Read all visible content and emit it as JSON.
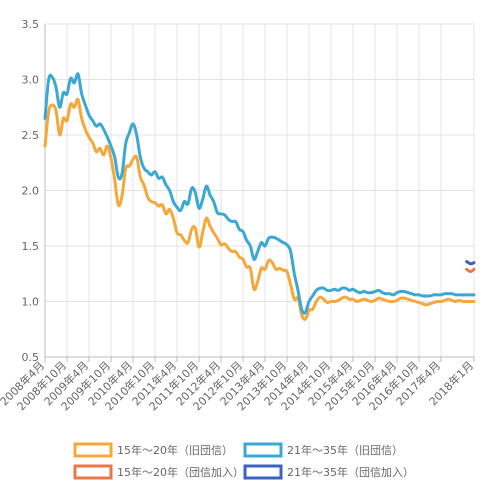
{
  "chart_data": {
    "type": "line",
    "title": "",
    "xlabel": "",
    "ylabel": "",
    "ylim": [
      0.5,
      3.5
    ],
    "yticks": [
      "0.5",
      "1.0",
      "1.5",
      "2.0",
      "2.5",
      "3.0",
      "3.5"
    ],
    "xlim": [
      "2008-04",
      "2018-01"
    ],
    "xticks": [
      "2008年4月",
      "2008年10月",
      "2009年4月",
      "2009年10月",
      "2010年4月",
      "2010年10月",
      "2011年4月",
      "2011年10月",
      "2012年4月",
      "2012年10月",
      "2013年4月",
      "2013年10月",
      "2014年4月",
      "2014年10月",
      "2015年4月",
      "2015年10月",
      "2016年4月",
      "2016年10月",
      "2017年4月",
      "2018年1月"
    ],
    "xtick_months": [
      0,
      6,
      12,
      18,
      24,
      30,
      36,
      42,
      48,
      54,
      60,
      66,
      72,
      78,
      84,
      90,
      96,
      102,
      108,
      117
    ],
    "grid": true,
    "legend_position": "bottom",
    "series": [
      {
        "name": "15年～20年（旧団信）",
        "color": "#F5A83A",
        "x": [
          "2008-04",
          "2008-05",
          "2008-06",
          "2008-07",
          "2008-08",
          "2008-09",
          "2008-10",
          "2008-11",
          "2008-12",
          "2009-01",
          "2009-02",
          "2009-03",
          "2009-04",
          "2009-05",
          "2009-06",
          "2009-07",
          "2009-08",
          "2009-09",
          "2009-10",
          "2009-11",
          "2009-12",
          "2010-01",
          "2010-02",
          "2010-03",
          "2010-04",
          "2010-05",
          "2010-06",
          "2010-07",
          "2010-08",
          "2010-09",
          "2010-10",
          "2010-11",
          "2010-12",
          "2011-01",
          "2011-02",
          "2011-03",
          "2011-04",
          "2011-05",
          "2011-06",
          "2011-07",
          "2011-08",
          "2011-09",
          "2011-10",
          "2011-11",
          "2011-12",
          "2012-01",
          "2012-02",
          "2012-03",
          "2012-04",
          "2012-05",
          "2012-06",
          "2012-07",
          "2012-08",
          "2012-09",
          "2012-10",
          "2012-11",
          "2012-12",
          "2013-01",
          "2013-02",
          "2013-03",
          "2013-04",
          "2013-05",
          "2013-06",
          "2013-07",
          "2013-08",
          "2013-09",
          "2013-10",
          "2013-11",
          "2013-12",
          "2014-01",
          "2014-02",
          "2014-03",
          "2014-04",
          "2014-05",
          "2014-06",
          "2014-07",
          "2014-08",
          "2014-09",
          "2014-10",
          "2014-11",
          "2014-12",
          "2015-01",
          "2015-02",
          "2015-03",
          "2015-04",
          "2015-05",
          "2015-06",
          "2015-07",
          "2015-08",
          "2015-09",
          "2015-10",
          "2015-11",
          "2015-12",
          "2016-01",
          "2016-02",
          "2016-03",
          "2016-04",
          "2016-05",
          "2016-06",
          "2016-07",
          "2016-08",
          "2016-09",
          "2016-10",
          "2016-11",
          "2016-12",
          "2017-01",
          "2017-02",
          "2017-03",
          "2017-04",
          "2017-05",
          "2017-06",
          "2017-07",
          "2017-08",
          "2017-09",
          "2017-10",
          "2017-11",
          "2017-12",
          "2018-01"
        ],
        "values": [
          2.4,
          2.71,
          2.77,
          2.72,
          2.5,
          2.65,
          2.63,
          2.78,
          2.75,
          2.82,
          2.65,
          2.55,
          2.48,
          2.43,
          2.35,
          2.38,
          2.32,
          2.4,
          2.29,
          2.1,
          1.87,
          1.95,
          2.2,
          2.22,
          2.28,
          2.3,
          2.12,
          2.05,
          1.94,
          1.9,
          1.89,
          1.86,
          1.87,
          1.79,
          1.83,
          1.75,
          1.62,
          1.6,
          1.55,
          1.53,
          1.65,
          1.66,
          1.49,
          1.62,
          1.75,
          1.68,
          1.62,
          1.57,
          1.51,
          1.52,
          1.48,
          1.45,
          1.45,
          1.4,
          1.38,
          1.31,
          1.3,
          1.11,
          1.18,
          1.3,
          1.29,
          1.37,
          1.35,
          1.29,
          1.3,
          1.28,
          1.27,
          1.15,
          1.02,
          1.03,
          0.88,
          0.84,
          0.92,
          0.93,
          1.0,
          1.04,
          1.02,
          0.99,
          1.0,
          1.0,
          1.01,
          1.03,
          1.04,
          1.02,
          1.02,
          1.0,
          1.01,
          1.02,
          1.01,
          1.0,
          1.01,
          1.03,
          1.02,
          1.01,
          1.0,
          1.0,
          1.01,
          1.03,
          1.03,
          1.02,
          1.01,
          1.0,
          0.99,
          0.98,
          0.97,
          0.98,
          0.99,
          1.0,
          1.0,
          1.01,
          1.02,
          1.01,
          1.0,
          1.01,
          1.0,
          1.0,
          1.0,
          1.0
        ]
      },
      {
        "name": "21年～35年（旧団信）",
        "color": "#3BA8D4",
        "x": [
          "2008-04",
          "2008-05",
          "2008-06",
          "2008-07",
          "2008-08",
          "2008-09",
          "2008-10",
          "2008-11",
          "2008-12",
          "2009-01",
          "2009-02",
          "2009-03",
          "2009-04",
          "2009-05",
          "2009-06",
          "2009-07",
          "2009-08",
          "2009-09",
          "2009-10",
          "2009-11",
          "2009-12",
          "2010-01",
          "2010-02",
          "2010-03",
          "2010-04",
          "2010-05",
          "2010-06",
          "2010-07",
          "2010-08",
          "2010-09",
          "2010-10",
          "2010-11",
          "2010-12",
          "2011-01",
          "2011-02",
          "2011-03",
          "2011-04",
          "2011-05",
          "2011-06",
          "2011-07",
          "2011-08",
          "2011-09",
          "2011-10",
          "2011-11",
          "2011-12",
          "2012-01",
          "2012-02",
          "2012-03",
          "2012-04",
          "2012-05",
          "2012-06",
          "2012-07",
          "2012-08",
          "2012-09",
          "2012-10",
          "2012-11",
          "2012-12",
          "2013-01",
          "2013-02",
          "2013-03",
          "2013-04",
          "2013-05",
          "2013-06",
          "2013-07",
          "2013-08",
          "2013-09",
          "2013-10",
          "2013-11",
          "2013-12",
          "2014-01",
          "2014-02",
          "2014-03",
          "2014-04",
          "2014-05",
          "2014-06",
          "2014-07",
          "2014-08",
          "2014-09",
          "2014-10",
          "2014-11",
          "2014-12",
          "2015-01",
          "2015-02",
          "2015-03",
          "2015-04",
          "2015-05",
          "2015-06",
          "2015-07",
          "2015-08",
          "2015-09",
          "2015-10",
          "2015-11",
          "2015-12",
          "2016-01",
          "2016-02",
          "2016-03",
          "2016-04",
          "2016-05",
          "2016-06",
          "2016-07",
          "2016-08",
          "2016-09",
          "2016-10",
          "2016-11",
          "2016-12",
          "2017-01",
          "2017-02",
          "2017-03",
          "2017-04",
          "2017-05",
          "2017-06",
          "2017-07",
          "2017-08",
          "2017-09",
          "2017-10",
          "2017-11",
          "2017-12",
          "2018-01"
        ],
        "values": [
          2.65,
          3.0,
          3.02,
          2.93,
          2.75,
          2.88,
          2.87,
          3.01,
          2.97,
          3.05,
          2.87,
          2.77,
          2.68,
          2.63,
          2.58,
          2.6,
          2.55,
          2.48,
          2.4,
          2.3,
          2.12,
          2.15,
          2.42,
          2.52,
          2.6,
          2.5,
          2.3,
          2.2,
          2.17,
          2.14,
          2.17,
          2.11,
          2.12,
          2.05,
          2.0,
          1.9,
          1.85,
          1.82,
          1.9,
          1.88,
          2.02,
          1.98,
          1.84,
          1.92,
          2.04,
          1.96,
          1.9,
          1.8,
          1.79,
          1.78,
          1.74,
          1.72,
          1.72,
          1.65,
          1.63,
          1.55,
          1.5,
          1.38,
          1.45,
          1.53,
          1.5,
          1.57,
          1.58,
          1.57,
          1.55,
          1.53,
          1.51,
          1.45,
          1.25,
          1.1,
          0.93,
          0.9,
          1.0,
          1.05,
          1.1,
          1.12,
          1.12,
          1.1,
          1.1,
          1.11,
          1.1,
          1.12,
          1.12,
          1.1,
          1.11,
          1.09,
          1.08,
          1.09,
          1.08,
          1.08,
          1.09,
          1.1,
          1.08,
          1.07,
          1.07,
          1.06,
          1.08,
          1.09,
          1.09,
          1.08,
          1.07,
          1.06,
          1.06,
          1.05,
          1.05,
          1.05,
          1.06,
          1.06,
          1.06,
          1.07,
          1.07,
          1.07,
          1.06,
          1.06,
          1.06,
          1.06,
          1.06,
          1.06
        ]
      },
      {
        "name": "15年～20年（団信加入）",
        "color": "#E8784A",
        "x": [
          "2017-11",
          "2017-12",
          "2018-01"
        ],
        "values": [
          1.29,
          1.27,
          1.29
        ]
      },
      {
        "name": "21年～35年（団信加入）",
        "color": "#3D62C4",
        "x": [
          "2017-11",
          "2017-12",
          "2018-01"
        ],
        "values": [
          1.36,
          1.34,
          1.35
        ]
      }
    ]
  }
}
